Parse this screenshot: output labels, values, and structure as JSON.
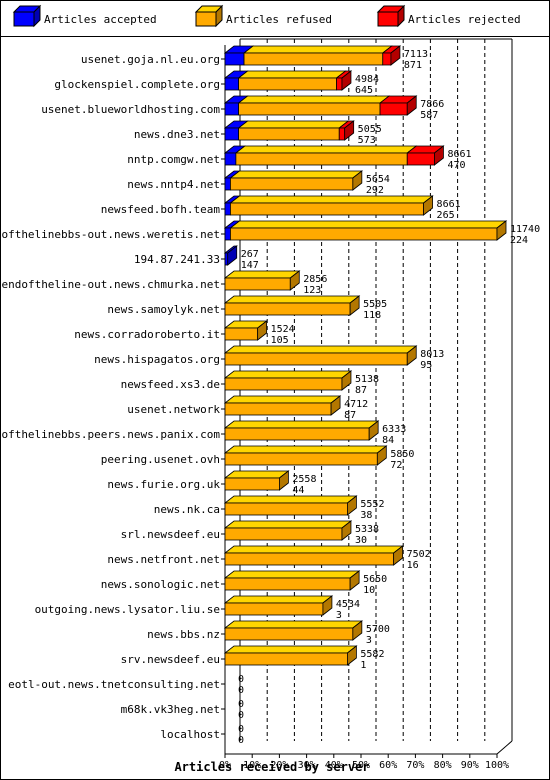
{
  "chart_data": {
    "type": "bar",
    "stacked": true,
    "orientation": "horizontal",
    "title": "",
    "xlabel": "Articles received by server",
    "ylabel": "",
    "xlim": [
      0,
      100
    ],
    "x_ticks": [
      "0%",
      "10%",
      "20%",
      "30%",
      "40%",
      "50%",
      "60%",
      "70%",
      "80%",
      "90%",
      "100%"
    ],
    "grid": "vertical dashed",
    "legend_position": "top",
    "series": [
      {
        "name": "Articles accepted",
        "color": "#0000ff"
      },
      {
        "name": "Articles refused",
        "color": "#ffaa00"
      },
      {
        "name": "Articles rejected",
        "color": "#ff0000"
      }
    ],
    "rows": [
      {
        "server": "usenet.goja.nl.eu.org",
        "label_top": "7113",
        "label_bottom": "871",
        "accepted": 7,
        "refused": 51,
        "rejected": 3
      },
      {
        "server": "glockenspiel.complete.org",
        "label_top": "4984",
        "label_bottom": "645",
        "accepted": 5,
        "refused": 36,
        "rejected": 2
      },
      {
        "server": "usenet.blueworldhosting.com",
        "label_top": "7866",
        "label_bottom": "587",
        "accepted": 5,
        "refused": 52,
        "rejected": 10
      },
      {
        "server": "news.dne3.net",
        "label_top": "5055",
        "label_bottom": "573",
        "accepted": 5,
        "refused": 37,
        "rejected": 2
      },
      {
        "server": "nntp.comgw.net",
        "label_top": "8661",
        "label_bottom": "470",
        "accepted": 4,
        "refused": 63,
        "rejected": 10
      },
      {
        "server": "news.nntp4.net",
        "label_top": "5654",
        "label_bottom": "292",
        "accepted": 2,
        "refused": 45,
        "rejected": 0
      },
      {
        "server": "newsfeed.bofh.team",
        "label_top": "8661",
        "label_bottom": "265",
        "accepted": 2,
        "refused": 71,
        "rejected": 0
      },
      {
        "server": "endofthelinebbs-out.news.weretis.net",
        "label_top": "11740",
        "label_bottom": "224",
        "accepted": 2,
        "refused": 98,
        "rejected": 0
      },
      {
        "server": "194.87.241.33",
        "label_top": "267",
        "label_bottom": "147",
        "accepted": 1,
        "refused": 0,
        "rejected": 0
      },
      {
        "server": "endoftheline-out.news.chmurka.net",
        "label_top": "2856",
        "label_bottom": "123",
        "accepted": 0,
        "refused": 24,
        "rejected": 0
      },
      {
        "server": "news.samoylyk.net",
        "label_top": "5505",
        "label_bottom": "118",
        "accepted": 0,
        "refused": 46,
        "rejected": 0
      },
      {
        "server": "news.corradoroberto.it",
        "label_top": "1524",
        "label_bottom": "105",
        "accepted": 0,
        "refused": 12,
        "rejected": 0
      },
      {
        "server": "news.hispagatos.org",
        "label_top": "8013",
        "label_bottom": "95",
        "accepted": 0,
        "refused": 67,
        "rejected": 0
      },
      {
        "server": "newsfeed.xs3.de",
        "label_top": "5138",
        "label_bottom": "87",
        "accepted": 0,
        "refused": 43,
        "rejected": 0
      },
      {
        "server": "usenet.network",
        "label_top": "4712",
        "label_bottom": "87",
        "accepted": 0,
        "refused": 39,
        "rejected": 0
      },
      {
        "server": "endofthelinebbs.peers.news.panix.com",
        "label_top": "6333",
        "label_bottom": "84",
        "accepted": 0,
        "refused": 53,
        "rejected": 0
      },
      {
        "server": "peering.usenet.ovh",
        "label_top": "5850",
        "label_bottom": "72",
        "accepted": 0,
        "refused": 56,
        "rejected": 0
      },
      {
        "server": "news.furie.org.uk",
        "label_top": "2558",
        "label_bottom": "44",
        "accepted": 0,
        "refused": 20,
        "rejected": 0
      },
      {
        "server": "news.nk.ca",
        "label_top": "5552",
        "label_bottom": "38",
        "accepted": 0,
        "refused": 45,
        "rejected": 0
      },
      {
        "server": "srl.newsdeef.eu",
        "label_top": "5338",
        "label_bottom": "30",
        "accepted": 0,
        "refused": 43,
        "rejected": 0
      },
      {
        "server": "news.netfront.net",
        "label_top": "7502",
        "label_bottom": "16",
        "accepted": 0,
        "refused": 62,
        "rejected": 0
      },
      {
        "server": "news.sonologic.net",
        "label_top": "5650",
        "label_bottom": "10",
        "accepted": 0,
        "refused": 46,
        "rejected": 0
      },
      {
        "server": "outgoing.news.lysator.liu.se",
        "label_top": "4534",
        "label_bottom": "3",
        "accepted": 0,
        "refused": 36,
        "rejected": 0
      },
      {
        "server": "news.bbs.nz",
        "label_top": "5700",
        "label_bottom": "3",
        "accepted": 0,
        "refused": 47,
        "rejected": 0
      },
      {
        "server": "srv.newsdeef.eu",
        "label_top": "5582",
        "label_bottom": "1",
        "accepted": 0,
        "refused": 45,
        "rejected": 0
      },
      {
        "server": "eotl-out.news.tnetconsulting.net",
        "label_top": "0",
        "label_bottom": "0",
        "accepted": 0,
        "refused": 0,
        "rejected": 0
      },
      {
        "server": "m68k.vk3heg.net",
        "label_top": "0",
        "label_bottom": "0",
        "accepted": 0,
        "refused": 0,
        "rejected": 0
      },
      {
        "server": "localhost",
        "label_top": "0",
        "label_bottom": "0",
        "accepted": 0,
        "refused": 0,
        "rejected": 0
      }
    ]
  }
}
